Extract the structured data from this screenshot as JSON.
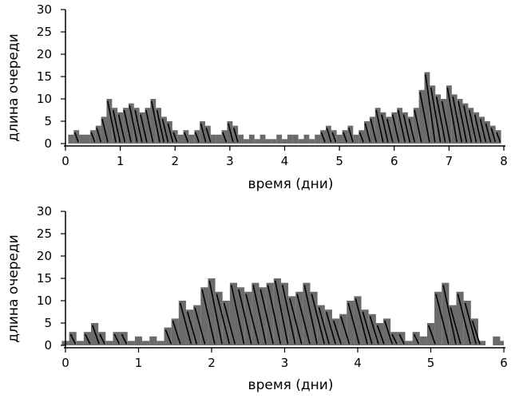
{
  "chart_data": [
    {
      "type": "area",
      "style": "stepped, histogram-like grey bars with diagonal black customer streaks",
      "xlabel": "время (дни)",
      "ylabel": "длина очереди",
      "xlim": [
        0,
        8
      ],
      "ylim": [
        0,
        30
      ],
      "xticks": [
        "0",
        "1",
        "2",
        "3",
        "4",
        "5",
        "6",
        "7",
        "8"
      ],
      "yticks": [
        "0",
        "5",
        "10",
        "15",
        "20",
        "25",
        "30"
      ],
      "fill_color": "#6b6b6b",
      "streak_color": "#000000",
      "grid": false,
      "series": [
        {
          "x": [
            0.0,
            0.1,
            0.2,
            0.3,
            0.4,
            0.5,
            0.6,
            0.7,
            0.8,
            0.9,
            1.0,
            1.1,
            1.2,
            1.3,
            1.4,
            1.5,
            1.6,
            1.7,
            1.8,
            1.9,
            2.0,
            2.1,
            2.2,
            2.3,
            2.4,
            2.5,
            2.6,
            2.7,
            2.8,
            2.9,
            3.0,
            3.1,
            3.2,
            3.3,
            3.4,
            3.5,
            3.6,
            3.7,
            3.8,
            3.9,
            4.0,
            4.1,
            4.2,
            4.3,
            4.4,
            4.5,
            4.6,
            4.7,
            4.8,
            4.9,
            5.0,
            5.1,
            5.2,
            5.3,
            5.4,
            5.5,
            5.6,
            5.7,
            5.8,
            5.9,
            6.0,
            6.1,
            6.2,
            6.3,
            6.4,
            6.5,
            6.6,
            6.7,
            6.8,
            6.9,
            7.0,
            7.1,
            7.2,
            7.3,
            7.4,
            7.5,
            7.6,
            7.7,
            7.8,
            7.9,
            8.0
          ],
          "values": [
            0,
            2,
            3,
            2,
            2,
            3,
            4,
            6,
            10,
            8,
            7,
            8,
            9,
            8,
            7,
            8,
            10,
            8,
            6,
            5,
            3,
            2,
            3,
            2,
            3,
            5,
            4,
            2,
            2,
            3,
            5,
            4,
            2,
            1,
            2,
            1,
            2,
            1,
            1,
            2,
            1,
            2,
            2,
            1,
            2,
            1,
            2,
            3,
            4,
            3,
            2,
            3,
            4,
            2,
            3,
            5,
            6,
            8,
            7,
            6,
            7,
            8,
            7,
            6,
            8,
            12,
            16,
            13,
            11,
            10,
            13,
            11,
            10,
            9,
            8,
            7,
            6,
            5,
            4,
            3,
            0
          ]
        }
      ]
    },
    {
      "type": "area",
      "style": "stepped, histogram-like grey bars with diagonal black customer streaks",
      "xlabel": "время (дни)",
      "ylabel": "длина очереди",
      "xlim": [
        0,
        6
      ],
      "ylim": [
        0,
        30
      ],
      "xticks": [
        "0",
        "1",
        "2",
        "3",
        "4",
        "5",
        "6"
      ],
      "yticks": [
        "0",
        "5",
        "10",
        "15",
        "20",
        "25",
        "30"
      ],
      "fill_color": "#6b6b6b",
      "streak_color": "#000000",
      "grid": false,
      "series": [
        {
          "x": [
            0.0,
            0.1,
            0.2,
            0.3,
            0.4,
            0.5,
            0.6,
            0.7,
            0.8,
            0.9,
            1.0,
            1.1,
            1.2,
            1.3,
            1.4,
            1.5,
            1.6,
            1.7,
            1.8,
            1.9,
            2.0,
            2.1,
            2.2,
            2.3,
            2.4,
            2.5,
            2.6,
            2.7,
            2.8,
            2.9,
            3.0,
            3.1,
            3.2,
            3.3,
            3.4,
            3.5,
            3.6,
            3.7,
            3.8,
            3.9,
            4.0,
            4.1,
            4.2,
            4.3,
            4.4,
            4.5,
            4.6,
            4.7,
            4.8,
            4.9,
            5.0,
            5.1,
            5.2,
            5.3,
            5.4,
            5.5,
            5.6,
            5.7,
            5.8,
            5.9,
            6.0
          ],
          "values": [
            1,
            3,
            1,
            3,
            5,
            3,
            1,
            3,
            3,
            1,
            2,
            1,
            2,
            1,
            4,
            6,
            10,
            8,
            9,
            13,
            15,
            12,
            10,
            14,
            13,
            12,
            14,
            13,
            14,
            15,
            14,
            11,
            12,
            14,
            12,
            9,
            8,
            6,
            7,
            10,
            11,
            8,
            7,
            5,
            6,
            3,
            3,
            1,
            3,
            2,
            5,
            12,
            14,
            9,
            12,
            10,
            6,
            1,
            0,
            2,
            1
          ]
        }
      ]
    }
  ]
}
